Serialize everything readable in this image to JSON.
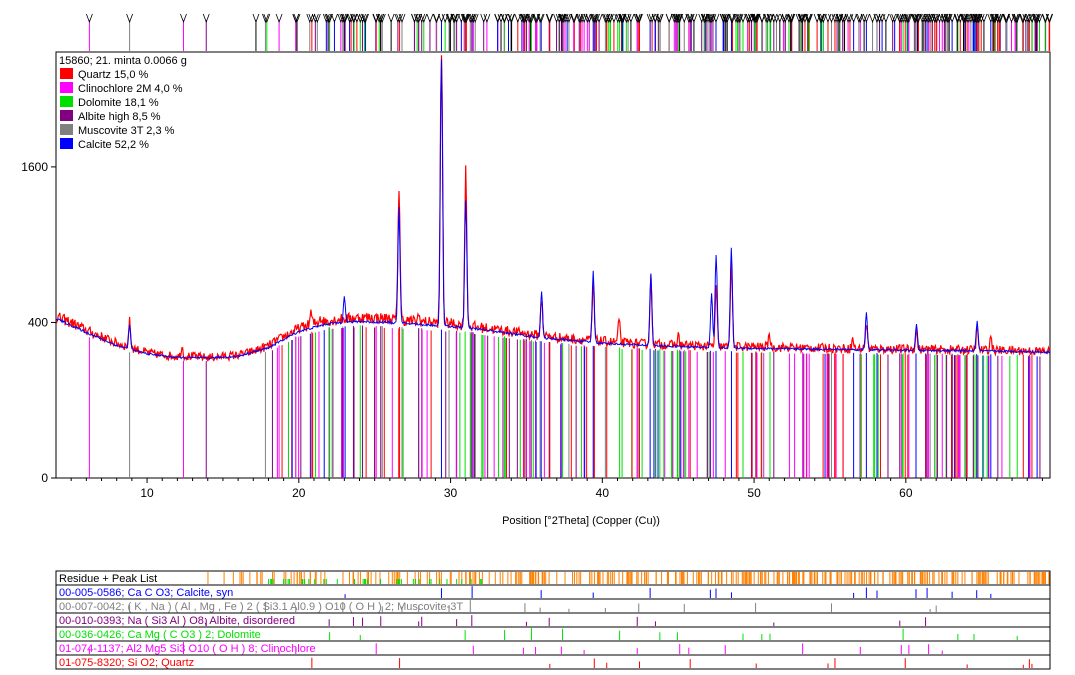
{
  "chart_data": {
    "type": "line",
    "title": "15860; 21. minta  0.0066 g",
    "xlabel": "Position [°2Theta] (Copper (Cu))",
    "ylabel": "",
    "xlim": [
      4,
      69.5
    ],
    "ylim": [
      0,
      3000
    ],
    "y_scale": "sqrt",
    "x_ticks": [
      10,
      20,
      30,
      40,
      50,
      60
    ],
    "y_ticks": [
      0,
      400,
      1600
    ],
    "legend_position": "top-left",
    "legend": [
      {
        "label": "Quartz 15,0 %",
        "color": "#ff0000"
      },
      {
        "label": "Clinochlore 2M 4,0 %",
        "color": "#ff00ff"
      },
      {
        "label": "Dolomite 18,1 %",
        "color": "#00e000"
      },
      {
        "label": "Albite high 8,5 %",
        "color": "#800080"
      },
      {
        "label": "Muscovite 3T 2,3 %",
        "color": "#808080"
      },
      {
        "label": "Calcite 52,2 %",
        "color": "#0000ff"
      }
    ],
    "series": [
      {
        "color": "#ff0000",
        "background": [
          [
            4,
            430
          ],
          [
            5,
            400
          ],
          [
            6,
            360
          ],
          [
            7,
            330
          ],
          [
            8,
            300
          ],
          [
            9,
            280
          ],
          [
            10,
            260
          ],
          [
            11,
            250
          ],
          [
            12,
            245
          ],
          [
            13,
            245
          ],
          [
            14,
            240
          ],
          [
            15,
            245
          ],
          [
            16,
            250
          ],
          [
            17,
            265
          ],
          [
            18,
            290
          ],
          [
            19,
            330
          ],
          [
            20,
            370
          ],
          [
            21,
            395
          ],
          [
            22,
            410
          ],
          [
            23,
            420
          ],
          [
            24,
            425
          ],
          [
            25,
            425
          ],
          [
            26,
            420
          ],
          [
            27,
            410
          ],
          [
            28,
            405
          ],
          [
            29,
            400
          ],
          [
            30,
            395
          ],
          [
            31,
            385
          ],
          [
            32,
            375
          ],
          [
            33,
            365
          ],
          [
            34,
            355
          ],
          [
            35,
            345
          ],
          [
            36,
            335
          ],
          [
            38,
            320
          ],
          [
            40,
            310
          ],
          [
            42,
            300
          ],
          [
            44,
            295
          ],
          [
            46,
            290
          ],
          [
            48,
            285
          ],
          [
            50,
            285
          ],
          [
            52,
            282
          ],
          [
            54,
            280
          ],
          [
            56,
            278
          ],
          [
            58,
            276
          ],
          [
            60,
            275
          ],
          [
            62,
            273
          ],
          [
            64,
            272
          ],
          [
            66,
            270
          ],
          [
            68,
            268
          ],
          [
            69.5,
            265
          ]
        ],
        "peaks": [
          [
            8.85,
            120
          ],
          [
            12.3,
            40
          ],
          [
            20.8,
            60
          ],
          [
            21.4,
            30
          ],
          [
            26.6,
            1000
          ],
          [
            27.9,
            30
          ],
          [
            29.4,
            2600
          ],
          [
            31.0,
            1150
          ],
          [
            36.0,
            200
          ],
          [
            39.4,
            300
          ],
          [
            41.1,
            100
          ],
          [
            43.2,
            350
          ],
          [
            45.0,
            40
          ],
          [
            47.5,
            300
          ],
          [
            48.5,
            500
          ],
          [
            51.0,
            60
          ],
          [
            56.5,
            40
          ],
          [
            57.4,
            120
          ],
          [
            60.7,
            80
          ],
          [
            64.7,
            90
          ],
          [
            65.6,
            60
          ]
        ]
      },
      {
        "color": "#0000ff",
        "background": [
          [
            4,
            420
          ],
          [
            6,
            350
          ],
          [
            8,
            290
          ],
          [
            10,
            255
          ],
          [
            12,
            240
          ],
          [
            14,
            238
          ],
          [
            16,
            245
          ],
          [
            18,
            280
          ],
          [
            20,
            355
          ],
          [
            22,
            395
          ],
          [
            24,
            405
          ],
          [
            26,
            400
          ],
          [
            28,
            390
          ],
          [
            30,
            380
          ],
          [
            32,
            365
          ],
          [
            34,
            345
          ],
          [
            36,
            325
          ],
          [
            40,
            300
          ],
          [
            44,
            288
          ],
          [
            48,
            280
          ],
          [
            52,
            276
          ],
          [
            56,
            273
          ],
          [
            60,
            270
          ],
          [
            64,
            268
          ],
          [
            69.5,
            262
          ]
        ],
        "peaks": [
          [
            8.85,
            110
          ],
          [
            23.0,
            150
          ],
          [
            26.6,
            800
          ],
          [
            29.4,
            2500
          ],
          [
            31.0,
            900
          ],
          [
            36.0,
            250
          ],
          [
            39.4,
            400
          ],
          [
            43.2,
            400
          ],
          [
            47.2,
            280
          ],
          [
            47.5,
            550
          ],
          [
            48.5,
            600
          ],
          [
            57.4,
            180
          ],
          [
            60.7,
            120
          ],
          [
            64.7,
            140
          ]
        ]
      }
    ],
    "reference_patterns": [
      {
        "label": "Residue + Peak List",
        "color": "#000000",
        "positions": []
      },
      {
        "label": "00-005-0586; Ca C O3; Calcite, syn",
        "color": "#0000ff",
        "positions": [
          23.05,
          29.4,
          31.42,
          35.97,
          39.4,
          43.15,
          47.12,
          47.49,
          48.51,
          56.56,
          57.4,
          58.1,
          60.67,
          61.4,
          63.05,
          64.67,
          65.6
        ]
      },
      {
        "label": "00-007-0042; ( K , Na ) ( Al , Mg , Fe ) 2 ( Si3.1 Al0.9 ) O10 ( O H ) 2; Muscovite-3T",
        "color": "#808080",
        "positions": [
          8.85,
          17.8,
          19.8,
          22.9,
          25.5,
          26.8,
          27.9,
          29.9,
          31.3,
          34.9,
          35.9,
          37.8,
          40.2,
          42.4,
          45.4,
          50.1,
          55.1,
          61.6,
          62.0
        ]
      },
      {
        "label": "00-010-0393; Na ( Si3 Al ) O8; Albite, disordered",
        "color": "#800080",
        "positions": [
          13.9,
          22.0,
          23.6,
          24.2,
          25.4,
          27.9,
          28.1,
          30.4,
          31.4,
          35.0,
          36.5,
          42.3,
          43.5,
          51.3,
          59.6,
          61.3
        ]
      },
      {
        "label": "00-036-0426; Ca Mg ( C O3 ) 2; Dolomite",
        "color": "#00e000",
        "positions": [
          22.03,
          24.05,
          30.96,
          33.56,
          35.33,
          37.38,
          41.14,
          43.79,
          44.95,
          49.27,
          50.51,
          51.05,
          59.82,
          63.43,
          64.49,
          67.34
        ]
      },
      {
        "label": "01-074-1137; Al2 Mg5 Si3 O10 ( O H ) 8; Clinochlore",
        "color": "#ff00ff",
        "positions": [
          6.2,
          12.4,
          18.7,
          19.8,
          25.1,
          31.5,
          34.8,
          35.6,
          37.3,
          38.8,
          42.3,
          45.1,
          45.7,
          48.1,
          53.2,
          57.0,
          59.7,
          60.2,
          61.5,
          62.4
        ]
      },
      {
        "label": "01-075-8320; Si O2; Quartz",
        "color": "#ff0000",
        "positions": [
          20.86,
          26.64,
          36.54,
          39.47,
          40.29,
          42.45,
          45.79,
          50.14,
          54.87,
          55.33,
          59.96,
          64.04,
          67.74,
          68.14,
          68.31
        ]
      }
    ]
  }
}
